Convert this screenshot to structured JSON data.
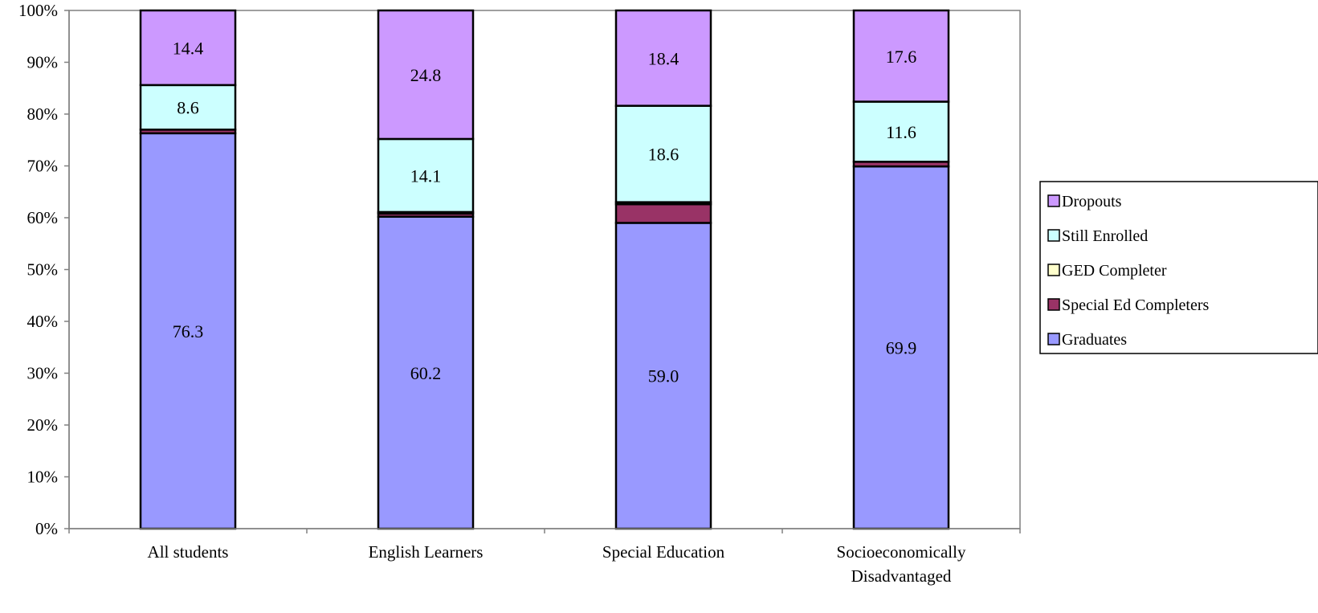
{
  "chart_data": {
    "type": "bar",
    "stacked": true,
    "percent_stacked": true,
    "categories": [
      [
        "All students"
      ],
      [
        "English Learners"
      ],
      [
        "Special Education"
      ],
      [
        "Socioeconomically",
        "Disadvantaged"
      ]
    ],
    "series": [
      {
        "name": "Graduates",
        "values": [
          76.3,
          60.2,
          59.0,
          69.9
        ],
        "labels": [
          "76.3",
          "60.2",
          "59.0",
          "69.9"
        ],
        "color": "#9999ff"
      },
      {
        "name": "Special Ed Completers",
        "values": [
          0.7,
          0.6,
          3.6,
          0.9
        ],
        "labels": [
          "",
          "",
          "",
          ""
        ],
        "color": "#993366"
      },
      {
        "name": "GED Completer",
        "values": [
          0.0,
          0.3,
          0.4,
          0.0
        ],
        "labels": [
          "",
          "",
          "",
          ""
        ],
        "color": "#ffffcc"
      },
      {
        "name": "Still Enrolled",
        "values": [
          8.6,
          14.1,
          18.6,
          11.6
        ],
        "labels": [
          "8.6",
          "14.1",
          "18.6",
          "11.6"
        ],
        "color": "#ccffff"
      },
      {
        "name": "Dropouts",
        "values": [
          14.4,
          24.8,
          18.4,
          17.6
        ],
        "labels": [
          "14.4",
          "24.8",
          "18.4",
          "17.6"
        ],
        "color": "#cc99ff"
      }
    ],
    "legend_order": [
      "Dropouts",
      "Still Enrolled",
      "GED Completer",
      "Special Ed Completers",
      "Graduates"
    ],
    "yticks": [
      "0%",
      "10%",
      "20%",
      "30%",
      "40%",
      "50%",
      "60%",
      "70%",
      "80%",
      "90%",
      "100%"
    ],
    "ylim": [
      0,
      100
    ],
    "grid": false,
    "legend_position": "right"
  }
}
